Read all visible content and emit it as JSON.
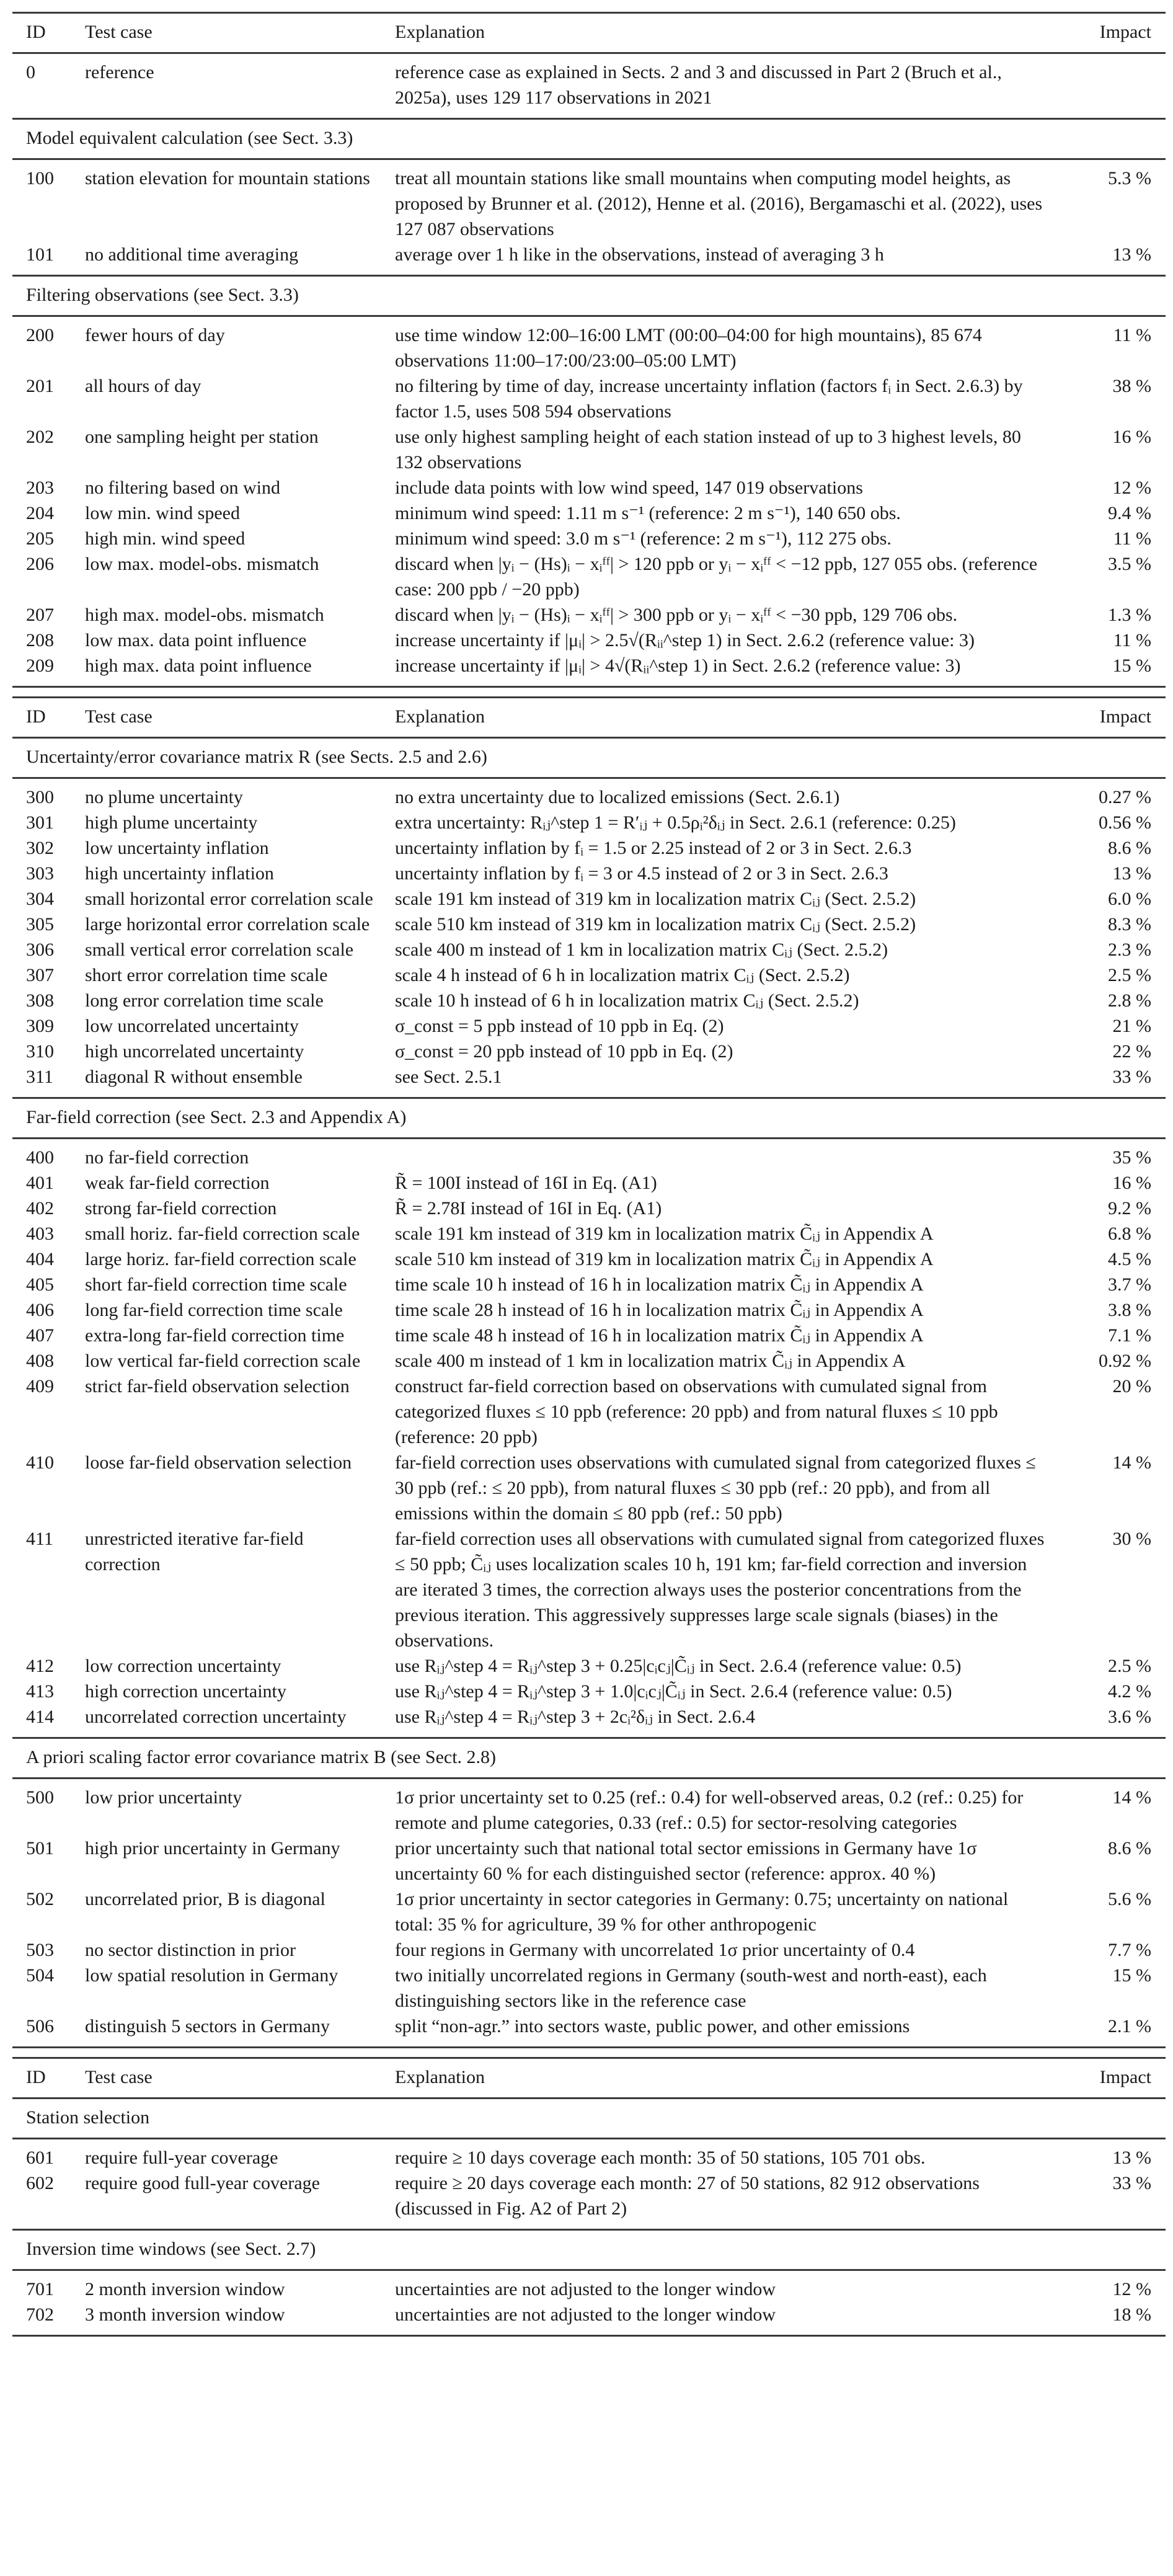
{
  "tables": [
    {
      "header": {
        "id": "ID",
        "test_case": "Test case",
        "explanation": "Explanation",
        "impact": "Impact"
      },
      "groups": [
        {
          "label": "",
          "rows": [
            {
              "id": "0",
              "test_case": "reference",
              "explanation": "reference case as explained in Sects. 2 and 3 and discussed in Part 2 (Bruch et al., 2025a), uses 129 117 observations in 2021",
              "impact": ""
            }
          ]
        },
        {
          "label": "Model equivalent calculation (see Sect. 3.3)",
          "rows": [
            {
              "id": "100",
              "test_case": "station elevation for mountain stations",
              "explanation": "treat all mountain stations like small mountains when computing model heights, as proposed by Brunner et al. (2012), Henne et al. (2016), Bergamaschi et al. (2022), uses 127 087 observations",
              "impact": "5.3 %"
            },
            {
              "id": "101",
              "test_case": "no additional time averaging",
              "explanation": "average over 1 h like in the observations, instead of averaging 3 h",
              "impact": "13 %"
            }
          ]
        },
        {
          "label": "Filtering observations (see Sect. 3.3)",
          "rows": [
            {
              "id": "200",
              "test_case": "fewer hours of day",
              "explanation": "use time window 12:00–16:00 LMT (00:00–04:00 for high mountains), 85 674 observations 11:00–17:00/23:00–05:00 LMT)",
              "impact": "11 %"
            },
            {
              "id": "201",
              "test_case": "all hours of day",
              "explanation": "no filtering by time of day, increase uncertainty inflation (factors fᵢ in Sect. 2.6.3) by factor 1.5, uses 508 594 observations",
              "impact": "38 %"
            },
            {
              "id": "202",
              "test_case": "one sampling height per station",
              "explanation": "use only highest sampling height of each station instead of up to 3 highest levels, 80 132 observations",
              "impact": "16 %"
            },
            {
              "id": "203",
              "test_case": "no filtering based on wind",
              "explanation": "include data points with low wind speed, 147 019 observations",
              "impact": "12 %"
            },
            {
              "id": "204",
              "test_case": "low min. wind speed",
              "explanation": "minimum wind speed: 1.11 m s⁻¹ (reference: 2 m s⁻¹), 140 650 obs.",
              "impact": "9.4 %"
            },
            {
              "id": "205",
              "test_case": "high min. wind speed",
              "explanation": "minimum wind speed: 3.0 m s⁻¹ (reference: 2 m s⁻¹), 112 275 obs.",
              "impact": "11 %"
            },
            {
              "id": "206",
              "test_case": "low max. model-obs. mismatch",
              "explanation": "discard when |yᵢ − (Hs)ᵢ − xᵢᶠᶠ| > 120 ppb or yᵢ − xᵢᶠᶠ < −12 ppb, 127 055 obs. (reference case: 200 ppb / −20 ppb)",
              "impact": "3.5 %"
            },
            {
              "id": "207",
              "test_case": "high max. model-obs. mismatch",
              "explanation": "discard when |yᵢ − (Hs)ᵢ − xᵢᶠᶠ| > 300 ppb or yᵢ − xᵢᶠᶠ < −30 ppb, 129 706 obs.",
              "impact": "1.3 %"
            },
            {
              "id": "208",
              "test_case": "low max. data point influence",
              "explanation": "increase uncertainty if |μᵢ| > 2.5√(Rᵢᵢ^step 1) in Sect. 2.6.2 (reference value: 3)",
              "impact": "11 %"
            },
            {
              "id": "209",
              "test_case": "high max. data point influence",
              "explanation": "increase uncertainty if |μᵢ| > 4√(Rᵢᵢ^step 1) in Sect. 2.6.2 (reference value: 3)",
              "impact": "15 %"
            }
          ]
        }
      ]
    },
    {
      "header": {
        "id": "ID",
        "test_case": "Test case",
        "explanation": "Explanation",
        "impact": "Impact"
      },
      "groups": [
        {
          "label": "Uncertainty/error covariance matrix R (see Sects. 2.5 and 2.6)",
          "rows": [
            {
              "id": "300",
              "test_case": "no plume uncertainty",
              "explanation": "no extra uncertainty due to localized emissions (Sect. 2.6.1)",
              "impact": "0.27 %"
            },
            {
              "id": "301",
              "test_case": "high plume uncertainty",
              "explanation": "extra uncertainty: Rᵢⱼ^step 1 = R′ᵢⱼ + 0.5ρᵢ²δᵢⱼ in Sect. 2.6.1 (reference: 0.25)",
              "impact": "0.56 %"
            },
            {
              "id": "302",
              "test_case": "low uncertainty inflation",
              "explanation": "uncertainty inflation by fᵢ = 1.5 or 2.25 instead of 2 or 3 in Sect. 2.6.3",
              "impact": "8.6 %"
            },
            {
              "id": "303",
              "test_case": "high uncertainty inflation",
              "explanation": "uncertainty inflation by fᵢ = 3 or 4.5 instead of 2 or 3 in Sect. 2.6.3",
              "impact": "13 %"
            },
            {
              "id": "304",
              "test_case": "small horizontal error correlation scale",
              "explanation": "scale 191 km instead of 319 km in localization matrix Cᵢⱼ (Sect. 2.5.2)",
              "impact": "6.0 %"
            },
            {
              "id": "305",
              "test_case": "large horizontal error correlation scale",
              "explanation": "scale 510 km instead of 319 km in localization matrix Cᵢⱼ (Sect. 2.5.2)",
              "impact": "8.3 %"
            },
            {
              "id": "306",
              "test_case": "small vertical error correlation scale",
              "explanation": "scale 400 m instead of 1 km in localization matrix Cᵢⱼ (Sect. 2.5.2)",
              "impact": "2.3 %"
            },
            {
              "id": "307",
              "test_case": "short error correlation time scale",
              "explanation": "scale 4 h instead of 6 h in localization matrix Cᵢⱼ (Sect. 2.5.2)",
              "impact": "2.5 %"
            },
            {
              "id": "308",
              "test_case": "long error correlation time scale",
              "explanation": "scale 10 h instead of 6 h in localization matrix Cᵢⱼ (Sect. 2.5.2)",
              "impact": "2.8 %"
            },
            {
              "id": "309",
              "test_case": "low uncorrelated uncertainty",
              "explanation": "σ_const = 5 ppb instead of 10 ppb in Eq. (2)",
              "impact": "21 %"
            },
            {
              "id": "310",
              "test_case": "high uncorrelated uncertainty",
              "explanation": "σ_const = 20 ppb instead of 10 ppb in Eq. (2)",
              "impact": "22 %"
            },
            {
              "id": "311",
              "test_case": "diagonal R without ensemble",
              "explanation": "see Sect. 2.5.1",
              "impact": "33 %"
            }
          ]
        },
        {
          "label": "Far-field correction (see Sect. 2.3 and Appendix A)",
          "rows": [
            {
              "id": "400",
              "test_case": "no far-field correction",
              "explanation": "",
              "impact": "35 %"
            },
            {
              "id": "401",
              "test_case": "weak far-field correction",
              "explanation": "R̃ = 100I instead of 16I in Eq. (A1)",
              "impact": "16 %"
            },
            {
              "id": "402",
              "test_case": "strong far-field correction",
              "explanation": "R̃ = 2.78I instead of 16I in Eq. (A1)",
              "impact": "9.2 %"
            },
            {
              "id": "403",
              "test_case": "small horiz. far-field correction scale",
              "explanation": "scale 191 km instead of 319 km in localization matrix C̃ᵢⱼ in Appendix A",
              "impact": "6.8 %"
            },
            {
              "id": "404",
              "test_case": "large horiz. far-field correction scale",
              "explanation": "scale 510 km instead of 319 km in localization matrix C̃ᵢⱼ in Appendix A",
              "impact": "4.5 %"
            },
            {
              "id": "405",
              "test_case": "short far-field correction time scale",
              "explanation": "time scale 10 h instead of 16 h in localization matrix C̃ᵢⱼ in Appendix A",
              "impact": "3.7 %"
            },
            {
              "id": "406",
              "test_case": "long far-field correction time scale",
              "explanation": "time scale 28 h instead of 16 h in localization matrix C̃ᵢⱼ in Appendix A",
              "impact": "3.8 %"
            },
            {
              "id": "407",
              "test_case": "extra-long far-field correction time",
              "explanation": "time scale 48 h instead of 16 h in localization matrix C̃ᵢⱼ in Appendix A",
              "impact": "7.1 %"
            },
            {
              "id": "408",
              "test_case": "low vertical far-field correction scale",
              "explanation": "scale 400 m instead of 1 km in localization matrix C̃ᵢⱼ in Appendix A",
              "impact": "0.92 %"
            },
            {
              "id": "409",
              "test_case": "strict far-field observation selection",
              "explanation": "construct far-field correction based on observations with cumulated signal from categorized fluxes ≤ 10 ppb (reference: 20 ppb) and from natural fluxes ≤ 10 ppb (reference: 20 ppb)",
              "impact": "20 %"
            },
            {
              "id": "410",
              "test_case": "loose far-field observation selection",
              "explanation": "far-field correction uses observations with cumulated signal from categorized fluxes ≤ 30 ppb (ref.: ≤ 20 ppb), from natural fluxes ≤ 30 ppb (ref.: 20 ppb), and from all emissions within the domain ≤ 80 ppb (ref.: 50 ppb)",
              "impact": "14 %"
            },
            {
              "id": "411",
              "test_case": "unrestricted iterative far-field correction",
              "explanation": "far-field correction uses all observations with cumulated signal from categorized fluxes ≤ 50 ppb; C̃ᵢⱼ uses localization scales 10 h, 191 km; far-field correction and inversion are iterated 3 times, the correction always uses the posterior concentrations from the previous iteration. This aggressively suppresses large scale signals (biases) in the observations.",
              "impact": "30 %"
            },
            {
              "id": "412",
              "test_case": "low correction uncertainty",
              "explanation": "use Rᵢⱼ^step 4 = Rᵢⱼ^step 3 + 0.25|cᵢcⱼ|C̃ᵢⱼ in Sect. 2.6.4 (reference value: 0.5)",
              "impact": "2.5 %"
            },
            {
              "id": "413",
              "test_case": "high correction uncertainty",
              "explanation": "use Rᵢⱼ^step 4 = Rᵢⱼ^step 3 + 1.0|cᵢcⱼ|C̃ᵢⱼ in Sect. 2.6.4 (reference value: 0.5)",
              "impact": "4.2 %"
            },
            {
              "id": "414",
              "test_case": "uncorrelated correction uncertainty",
              "explanation": "use Rᵢⱼ^step 4 = Rᵢⱼ^step 3 + 2cᵢ²δᵢⱼ in Sect. 2.6.4",
              "impact": "3.6 %"
            }
          ]
        },
        {
          "label": "A priori scaling factor error covariance matrix B (see Sect. 2.8)",
          "rows": [
            {
              "id": "500",
              "test_case": "low prior uncertainty",
              "explanation": "1σ prior uncertainty set to 0.25 (ref.: 0.4) for well-observed areas, 0.2 (ref.: 0.25) for remote and plume categories, 0.33 (ref.: 0.5) for sector-resolving categories",
              "impact": "14 %"
            },
            {
              "id": "501",
              "test_case": "high prior uncertainty in Germany",
              "explanation": "prior uncertainty such that national total sector emissions in Germany have 1σ uncertainty 60 % for each distinguished sector (reference: approx. 40 %)",
              "impact": "8.6 %"
            },
            {
              "id": "502",
              "test_case": "uncorrelated prior, B is diagonal",
              "explanation": "1σ prior uncertainty in sector categories in Germany: 0.75; uncertainty on national total: 35 % for agriculture, 39 % for other anthropogenic",
              "impact": "5.6 %"
            },
            {
              "id": "503",
              "test_case": "no sector distinction in prior",
              "explanation": "four regions in Germany with uncorrelated 1σ prior uncertainty of 0.4",
              "impact": "7.7 %"
            },
            {
              "id": "504",
              "test_case": "low spatial resolution in Germany",
              "explanation": "two initially uncorrelated regions in Germany (south-west and north-east), each distinguishing sectors like in the reference case",
              "impact": "15 %"
            },
            {
              "id": "506",
              "test_case": "distinguish 5 sectors in Germany",
              "explanation": "split “non-agr.” into sectors waste, public power, and other emissions",
              "impact": "2.1 %"
            }
          ]
        }
      ]
    },
    {
      "header": {
        "id": "ID",
        "test_case": "Test case",
        "explanation": "Explanation",
        "impact": "Impact"
      },
      "groups": [
        {
          "label": "Station selection",
          "rows": [
            {
              "id": "601",
              "test_case": "require full-year coverage",
              "explanation": "require ≥ 10 days coverage each month: 35 of 50 stations, 105 701 obs.",
              "impact": "13 %"
            },
            {
              "id": "602",
              "test_case": "require good full-year coverage",
              "explanation": "require ≥ 20 days coverage each month: 27 of 50 stations, 82 912 observations (discussed in Fig. A2 of Part 2)",
              "impact": "33 %"
            }
          ]
        },
        {
          "label": "Inversion time windows (see Sect. 2.7)",
          "rows": [
            {
              "id": "701",
              "test_case": "2 month inversion window",
              "explanation": "uncertainties are not adjusted to the longer window",
              "impact": "12 %"
            },
            {
              "id": "702",
              "test_case": "3 month inversion window",
              "explanation": "uncertainties are not adjusted to the longer window",
              "impact": "18 %"
            }
          ]
        }
      ]
    }
  ]
}
